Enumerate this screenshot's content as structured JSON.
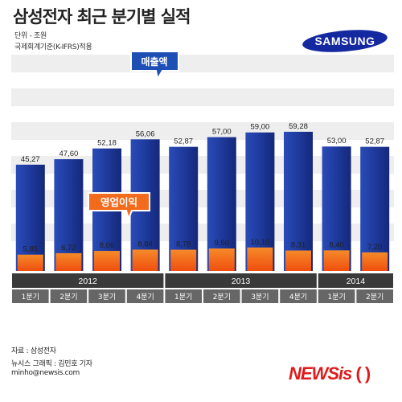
{
  "title": "삼성전자 최근 분기별 실적",
  "unit_note": "단위 - 조원",
  "standard_note": "국제회계기준(K-IFRS)적용",
  "brand_logo": {
    "text": "SAMSUNG",
    "color": "#1428a0"
  },
  "source_note": "자료 : 삼성전자",
  "credit_note": "뉴시스 그래픽 : 김민호 기자",
  "email_note": "minho@newsis.com",
  "publisher_logo": "NEWSis",
  "colors": {
    "revenue_bar": "#1e3a9c",
    "profit_bar": "#f26b1d",
    "revenue_callout": "#1e4fb5",
    "profit_callout": "#f26b1d",
    "year_band": "#3a3a3a",
    "quarter_band": "#666666"
  },
  "chart_data": {
    "type": "bar",
    "title": "삼성전자 최근 분기별 실적",
    "unit": "조원",
    "years": [
      {
        "label": "2012",
        "quarter_count": 4
      },
      {
        "label": "2013",
        "quarter_count": 4
      },
      {
        "label": "2014",
        "quarter_count": 2
      }
    ],
    "categories": [
      "1분기",
      "2분기",
      "3분기",
      "4분기",
      "1분기",
      "2분기",
      "3분기",
      "4분기",
      "1분기",
      "2분기"
    ],
    "series": [
      {
        "name": "매출액",
        "values": [
          45.27,
          47.6,
          52.18,
          56.06,
          52.87,
          57.0,
          59.0,
          59.28,
          53.0,
          52.87
        ],
        "labels": [
          "45,27",
          "47,60",
          "52,18",
          "56,06",
          "52,87",
          "57,00",
          "59,00",
          "59,28",
          "53,00",
          "52,87"
        ]
      },
      {
        "name": "영업이익",
        "values": [
          5.85,
          6.72,
          8.06,
          8.84,
          8.78,
          9.5,
          10.1,
          8.31,
          8.4,
          7.2
        ],
        "labels": [
          "5,85",
          "6,72",
          "8,06",
          "8,84",
          "8,78",
          "9,50",
          "10,10",
          "8,31",
          "8,40",
          "7,20"
        ]
      }
    ],
    "legend": "callouts"
  }
}
